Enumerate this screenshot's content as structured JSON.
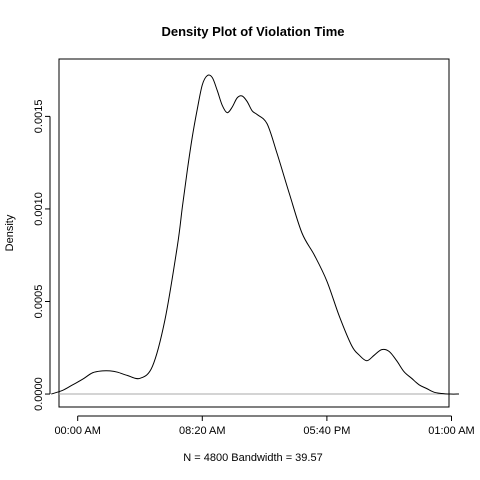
{
  "chart_data": {
    "type": "line",
    "title": "Density Plot of Violation Time",
    "xlabel": "N = 4800   Bandwidth = 39.57",
    "ylabel": "Density",
    "x_unit": "minutes since midnight",
    "xlim": [
      -75,
      1490
    ],
    "ylim": [
      -7e-05,
      0.00181
    ],
    "x_ticks": [
      {
        "value": 0,
        "label": "00:00 AM"
      },
      {
        "value": 500,
        "label": "08:20 AM"
      },
      {
        "value": 1000,
        "label": "05:40 PM"
      },
      {
        "value": 1500,
        "label": "01:00 AM"
      }
    ],
    "y_ticks": [
      {
        "value": 0,
        "label": "0.0000"
      },
      {
        "value": 0.0005,
        "label": "0.0005"
      },
      {
        "value": 0.001,
        "label": "0.0010"
      },
      {
        "value": 0.0015,
        "label": "0.0015"
      }
    ],
    "baseline": 0,
    "legend": "none",
    "grid": false,
    "series": [
      {
        "x": [
          -106,
          -60,
          -20,
          20,
          60,
          100,
          130,
          160,
          200,
          250,
          300,
          350,
          400,
          420,
          440,
          460,
          480,
          500,
          520,
          540,
          560,
          580,
          600,
          620,
          640,
          660,
          680,
          700,
          720,
          760,
          800,
          850,
          900,
          950,
          1000,
          1050,
          1100,
          1130,
          1160,
          1190,
          1220,
          1250,
          1280,
          1310,
          1340,
          1370,
          1400,
          1430,
          1460,
          1495,
          1530
        ],
        "y": [
          0,
          2e-05,
          5e-05,
          8e-05,
          0.000115,
          0.000125,
          0.000125,
          0.000118,
          0.0001,
          8.5e-05,
          0.00015,
          0.0004,
          0.0008,
          0.00101,
          0.00121,
          0.00139,
          0.00154,
          0.00167,
          0.00172,
          0.00171,
          0.00164,
          0.00156,
          0.00152,
          0.00155,
          0.0016,
          0.00161,
          0.00158,
          0.00153,
          0.00151,
          0.00146,
          0.0013,
          0.00108,
          0.00087,
          0.00075,
          0.00061,
          0.00042,
          0.00026,
          0.00021,
          0.00018,
          0.00021,
          0.00024,
          0.00023,
          0.00018,
          0.00012,
          8.5e-05,
          5e-05,
          3e-05,
          1e-05,
          3e-06,
          0,
          0
        ]
      }
    ]
  }
}
